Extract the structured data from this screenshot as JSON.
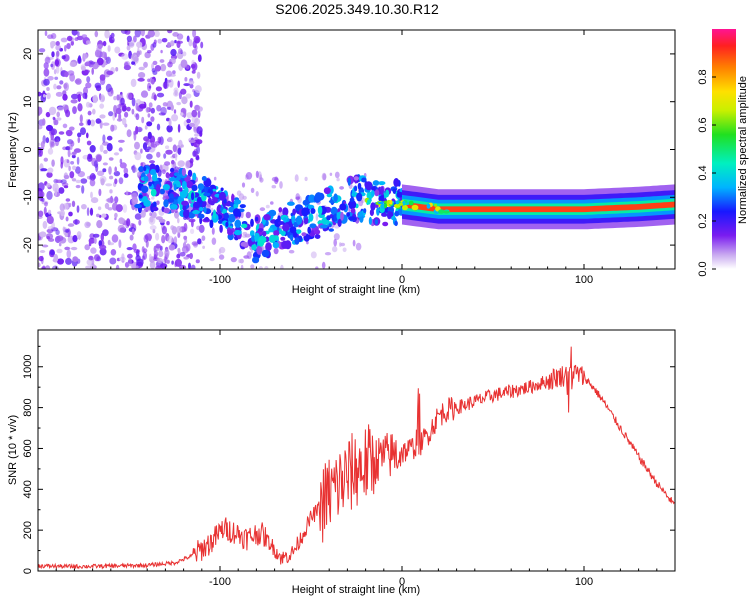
{
  "title": "S206.2025.349.10.30.R12",
  "chart_data": [
    {
      "type": "heatmap",
      "xlabel": "Height of straight line (km)",
      "ylabel": "Frequency (Hz)",
      "xlim": [
        -200,
        150
      ],
      "ylim": [
        -25,
        25
      ],
      "xticks": [
        -100,
        0,
        100
      ],
      "yticks": [
        -20,
        -10,
        0,
        10,
        20
      ],
      "colorbar": {
        "label": "Normalized spectral amplitude",
        "range": [
          0,
          1
        ],
        "ticks": [
          0.0,
          0.2,
          0.4,
          0.6,
          0.8
        ]
      },
      "ridge": [
        {
          "x": -140,
          "freq": -8
        },
        {
          "x": -120,
          "freq": -9
        },
        {
          "x": -105,
          "freq": -11
        },
        {
          "x": -90,
          "freq": -15
        },
        {
          "x": -80,
          "freq": -19
        },
        {
          "x": -70,
          "freq": -17
        },
        {
          "x": -60,
          "freq": -15
        },
        {
          "x": -45,
          "freq": -14
        },
        {
          "x": -30,
          "freq": -10
        },
        {
          "x": -15,
          "freq": -11
        },
        {
          "x": 0,
          "freq": -11.5
        },
        {
          "x": 20,
          "freq": -12.5
        },
        {
          "x": 60,
          "freq": -12.5
        },
        {
          "x": 100,
          "freq": -12.5
        },
        {
          "x": 130,
          "freq": -12
        },
        {
          "x": 150,
          "freq": -11.5
        }
      ]
    },
    {
      "type": "line",
      "xlabel": "Height of straight line (km)",
      "ylabel": "SNR (10 * v/v)",
      "xlim": [
        -200,
        150
      ],
      "ylim": [
        0,
        1180
      ],
      "xticks": [
        -100,
        0,
        100
      ],
      "yticks": [
        0,
        200,
        400,
        600,
        800,
        1000
      ],
      "series": [
        {
          "name": "SNR",
          "color": "#e83232",
          "x": [
            -200,
            -180,
            -160,
            -140,
            -125,
            -115,
            -105,
            -98,
            -92,
            -85,
            -78,
            -72,
            -66,
            -60,
            -55,
            -50,
            -45,
            -40,
            -35,
            -30,
            -25,
            -20,
            -15,
            -10,
            -5,
            0,
            5,
            10,
            15,
            20,
            25,
            30,
            40,
            50,
            60,
            70,
            80,
            85,
            90,
            95,
            100,
            105,
            110,
            120,
            130,
            140,
            150
          ],
          "values": [
            25,
            22,
            24,
            28,
            40,
            75,
            140,
            210,
            190,
            160,
            190,
            130,
            60,
            90,
            170,
            260,
            310,
            380,
            420,
            460,
            500,
            520,
            540,
            560,
            570,
            580,
            600,
            620,
            680,
            760,
            790,
            800,
            830,
            860,
            880,
            900,
            930,
            950,
            960,
            970,
            950,
            900,
            840,
            700,
            560,
            430,
            320
          ]
        }
      ]
    }
  ]
}
